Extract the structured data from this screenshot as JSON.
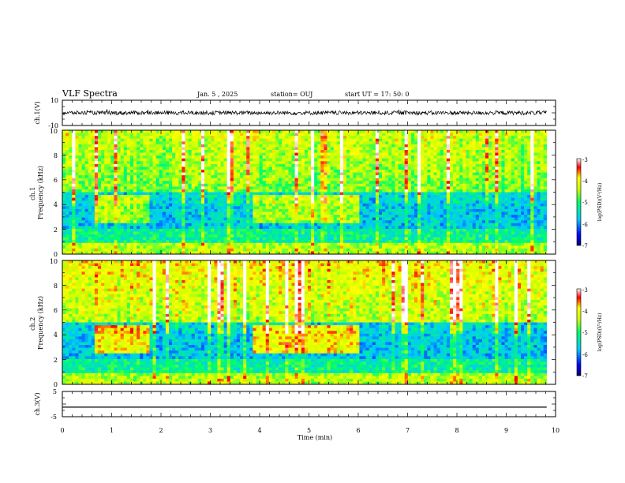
{
  "header": {
    "title": "VLF Spectra",
    "date": "Jan. 5 , 2025",
    "station": "station= OUJ",
    "start": "start UT =  17: 50: 0"
  },
  "chart_data": [
    {
      "type": "line",
      "name_ref": "ch1-waveform",
      "ylabel": "ch.1(V)",
      "ylim": [
        -10,
        10
      ],
      "yticks": [
        "10",
        "-10"
      ],
      "xlim": [
        0,
        10
      ],
      "baseline": 0,
      "amplitude_approx": 2
    },
    {
      "type": "heatmap",
      "name_ref": "ch1-spectrogram",
      "ylabel": "ch.1\nFrequency (kHz)",
      "ylim": [
        0,
        10
      ],
      "yticks": [
        "0",
        "2",
        "4",
        "6",
        "8",
        "10"
      ],
      "xlim": [
        0,
        10
      ],
      "colorbar": {
        "label": "log(PSD)(V²/Hz)",
        "ticks": [
          "-3",
          "-4",
          "-5",
          "-6",
          "-7"
        ],
        "range": [
          -7,
          -3
        ]
      }
    },
    {
      "type": "heatmap",
      "name_ref": "ch2-spectrogram",
      "ylabel": "ch.2\nFrequency (kHz)",
      "ylim": [
        0,
        10
      ],
      "yticks": [
        "0",
        "2",
        "4",
        "6",
        "8",
        "10"
      ],
      "xlim": [
        0,
        10
      ],
      "colorbar": {
        "label": "log(PSD)(V²/Hz)",
        "ticks": [
          "-3",
          "-4",
          "-5",
          "-6",
          "-7"
        ],
        "range": [
          -7,
          -3
        ]
      }
    },
    {
      "type": "line",
      "name_ref": "ch3-waveform",
      "ylabel": "ch.3(V)",
      "ylim": [
        -5,
        5
      ],
      "yticks": [
        "5",
        "-5"
      ],
      "xlim": [
        0,
        10
      ],
      "baseline": -1.2
    }
  ],
  "xaxis": {
    "label": "Time (min)",
    "ticks": [
      "0",
      "1",
      "2",
      "3",
      "4",
      "5",
      "6",
      "7",
      "8",
      "9",
      "10"
    ]
  }
}
